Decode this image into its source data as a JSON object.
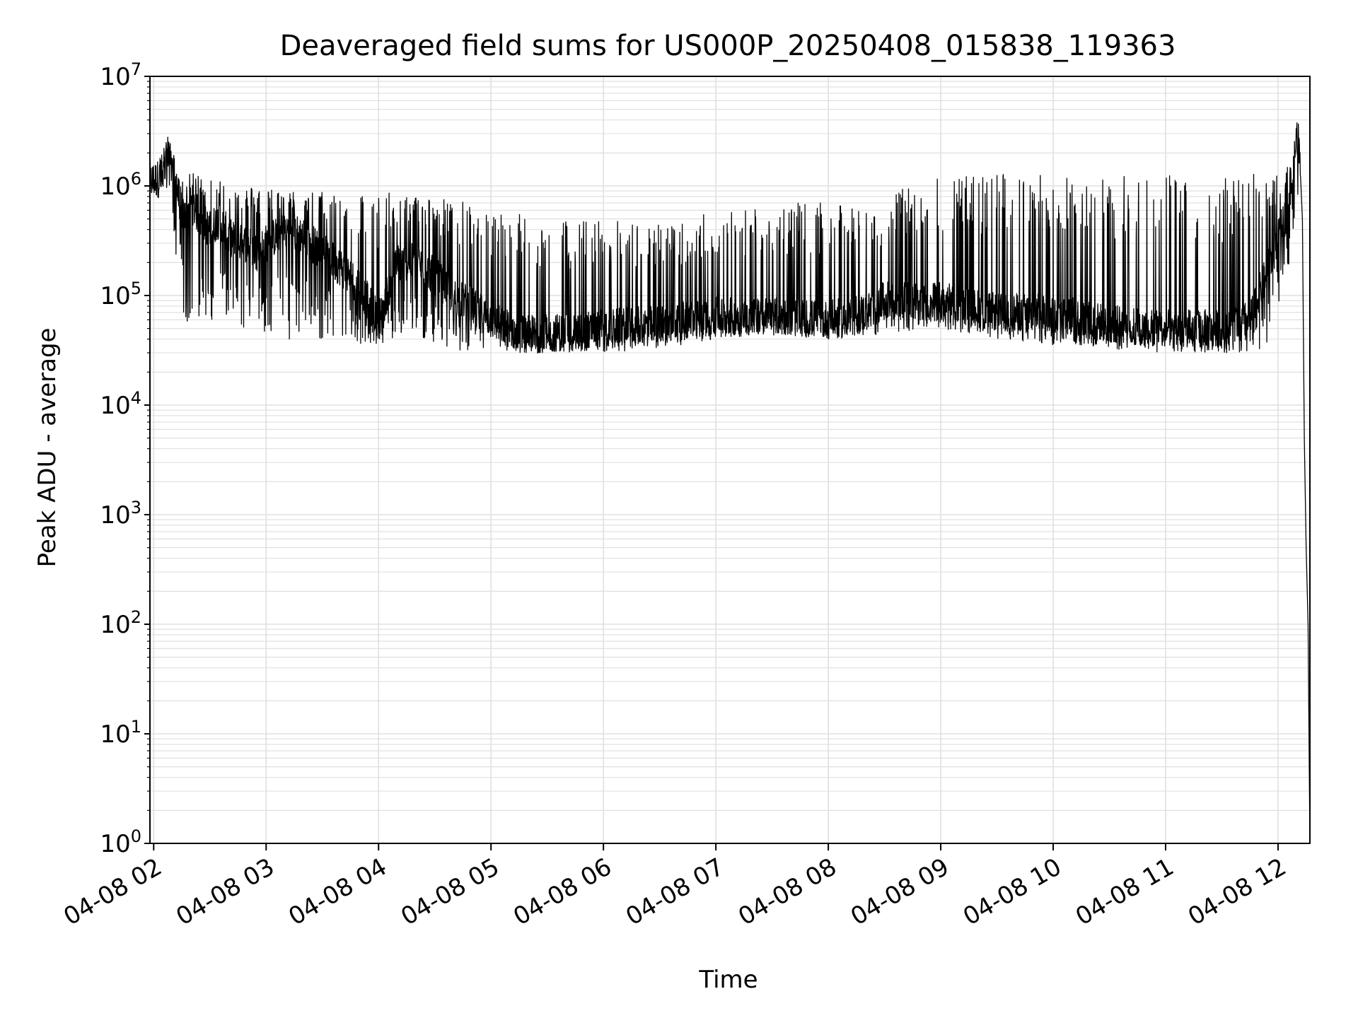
{
  "chart_data": {
    "type": "line",
    "title": "Deaveraged field sums for US000P_20250408_015838_119363",
    "xlabel": "Time",
    "ylabel": "Peak ADU - average",
    "yscale": "log",
    "ylim": [
      1,
      10000000
    ],
    "xlim": [
      "2025-04-08 01:58",
      "2025-04-08 12:17"
    ],
    "x_ticks": [
      {
        "label": "04-08 02",
        "value": "2025-04-08 02:00"
      },
      {
        "label": "04-08 03",
        "value": "2025-04-08 03:00"
      },
      {
        "label": "04-08 04",
        "value": "2025-04-08 04:00"
      },
      {
        "label": "04-08 05",
        "value": "2025-04-08 05:00"
      },
      {
        "label": "04-08 06",
        "value": "2025-04-08 06:00"
      },
      {
        "label": "04-08 07",
        "value": "2025-04-08 07:00"
      },
      {
        "label": "04-08 08",
        "value": "2025-04-08 08:00"
      },
      {
        "label": "04-08 09",
        "value": "2025-04-08 09:00"
      },
      {
        "label": "04-08 10",
        "value": "2025-04-08 10:00"
      },
      {
        "label": "04-08 11",
        "value": "2025-04-08 11:00"
      },
      {
        "label": "04-08 12",
        "value": "2025-04-08 12:00"
      }
    ],
    "y_ticks": [
      {
        "base": "10",
        "exp": "0",
        "value": 1
      },
      {
        "base": "10",
        "exp": "1",
        "value": 10
      },
      {
        "base": "10",
        "exp": "2",
        "value": 100
      },
      {
        "base": "10",
        "exp": "3",
        "value": 1000
      },
      {
        "base": "10",
        "exp": "4",
        "value": 10000
      },
      {
        "base": "10",
        "exp": "5",
        "value": 100000
      },
      {
        "base": "10",
        "exp": "6",
        "value": 1000000
      },
      {
        "base": "10",
        "exp": "7",
        "value": 10000000
      }
    ],
    "grid": true,
    "line_color": "#000000",
    "series": [
      {
        "x": [
          "2025-04-08 01:58",
          "2025-04-08 02:05",
          "2025-04-08 02:08",
          "2025-04-08 02:12",
          "2025-04-08 02:16",
          "2025-04-08 02:20",
          "2025-04-08 02:25",
          "2025-04-08 02:30",
          "2025-04-08 02:35",
          "2025-04-08 02:40",
          "2025-04-08 02:45",
          "2025-04-08 02:50",
          "2025-04-08 02:55",
          "2025-04-08 03:00",
          "2025-04-08 03:10",
          "2025-04-08 03:20",
          "2025-04-08 03:30",
          "2025-04-08 03:40",
          "2025-04-08 03:50",
          "2025-04-08 04:00",
          "2025-04-08 04:10",
          "2025-04-08 04:20",
          "2025-04-08 04:30",
          "2025-04-08 04:40",
          "2025-04-08 04:50",
          "2025-04-08 05:00",
          "2025-04-08 05:15",
          "2025-04-08 05:30",
          "2025-04-08 06:00",
          "2025-04-08 06:30",
          "2025-04-08 07:00",
          "2025-04-08 07:30",
          "2025-04-08 08:00",
          "2025-04-08 08:20",
          "2025-04-08 08:30",
          "2025-04-08 09:00",
          "2025-04-08 09:30",
          "2025-04-08 10:00",
          "2025-04-08 10:30",
          "2025-04-08 11:00",
          "2025-04-08 11:30",
          "2025-04-08 11:45",
          "2025-04-08 11:55",
          "2025-04-08 12:05",
          "2025-04-08 12:08",
          "2025-04-08 12:10",
          "2025-04-08 12:12",
          "2025-04-08 12:13",
          "2025-04-08 12:14",
          "2025-04-08 12:15",
          "2025-04-08 12:16",
          "2025-04-08 12:17"
        ],
        "typical": [
          1100000,
          1200000,
          2200000,
          1000000,
          500000,
          700000,
          500000,
          400000,
          500000,
          350000,
          300000,
          300000,
          250000,
          300000,
          400000,
          350000,
          250000,
          180000,
          120000,
          60000,
          200000,
          200000,
          150000,
          100000,
          80000,
          60000,
          45000,
          45000,
          50000,
          55000,
          65000,
          65000,
          60000,
          70000,
          90000,
          90000,
          70000,
          70000,
          55000,
          50000,
          50000,
          60000,
          180000,
          600000,
          1200000,
          3000000,
          1500000,
          500000,
          5000,
          500,
          100,
          1
        ],
        "spike_max": [
          1400000,
          2200000,
          2500000,
          1400000,
          1200000,
          1300000,
          1300000,
          1200000,
          1200000,
          1100000,
          1000000,
          1000000,
          1000000,
          1000000,
          900000,
          900000,
          900000,
          900000,
          900000,
          900000,
          850000,
          850000,
          800000,
          750000,
          700000,
          600000,
          600000,
          500000,
          500000,
          450000,
          600000,
          700000,
          700000,
          600000,
          800000,
          1300000,
          1300000,
          1300000,
          1300000,
          1300000,
          1300000,
          1300000,
          1300000,
          1500000,
          1500000,
          6000000,
          2000000,
          800000,
          5000,
          500,
          100,
          1
        ],
        "spike_min": [
          900000,
          900000,
          1000000,
          200000,
          60000,
          50000,
          60000,
          60000,
          60000,
          55000,
          50000,
          50000,
          45000,
          45000,
          40000,
          40000,
          40000,
          35000,
          35000,
          35000,
          35000,
          40000,
          35000,
          30000,
          30000,
          30000,
          28000,
          30000,
          30000,
          33000,
          40000,
          45000,
          40000,
          42000,
          45000,
          50000,
          40000,
          35000,
          32000,
          30000,
          30000,
          30000,
          35000,
          150000,
          400000,
          800000,
          450000,
          300000,
          3000,
          300,
          50,
          1
        ]
      }
    ]
  }
}
